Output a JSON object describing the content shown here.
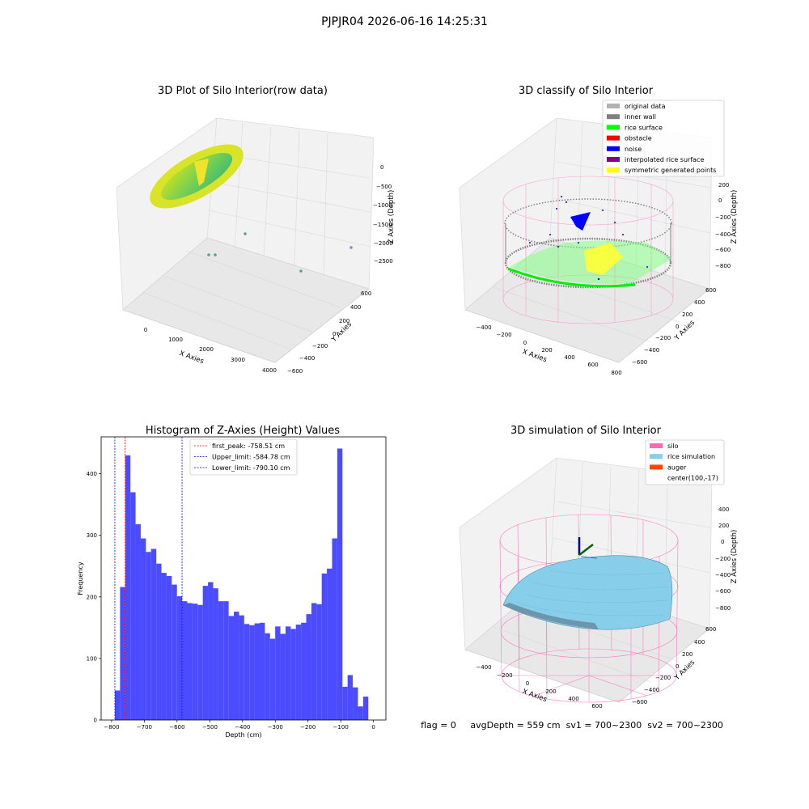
{
  "suptitle": "PJPJR04 2026-06-16 14:25:31",
  "footer_text": "flag = 0     avgDepth = 559 cm  sv1 = 700~2300  sv2 = 700~2300",
  "chart_data": [
    {
      "type": "scatter",
      "projection": "3d",
      "title": "3D Plot of Silo Interior(row data)",
      "xlabel": "X Axies",
      "ylabel": "Y Axies",
      "zlabel": "Z Axies (Depth)",
      "x_ticks": [
        "0",
        "1000",
        "2000",
        "3000",
        "4000"
      ],
      "y_ticks": [
        "600",
        "400",
        "200",
        "0",
        "−200",
        "−400",
        "−600"
      ],
      "z_ticks": [
        "0",
        "−500",
        "−1000",
        "−1500",
        "−2000",
        "−2500"
      ],
      "xlim": [
        -400,
        4200
      ],
      "ylim": [
        -650,
        650
      ],
      "zlim": [
        -2800,
        0
      ],
      "colormap": "viridis",
      "outlier_points": [
        {
          "x": 1400,
          "y": 300,
          "z": -2100
        },
        {
          "x": 1500,
          "y": 300,
          "z": -2100
        },
        {
          "x": 2000,
          "y": 150,
          "z": -1700
        },
        {
          "x": 3500,
          "y": -100,
          "z": -2300
        },
        {
          "x": 4000,
          "y": -450,
          "z": -2000
        }
      ],
      "grid": true
    },
    {
      "type": "scatter",
      "projection": "3d",
      "title": "3D classify of Silo Interior",
      "xlabel": "X Axies",
      "ylabel": "Y Axies",
      "zlabel": "Z Axies (Depth)",
      "x_ticks": [
        "−400",
        "−200",
        "0",
        "200",
        "400",
        "600",
        "800"
      ],
      "y_ticks": [
        "600",
        "400",
        "200",
        "0",
        "−200",
        "−400",
        "−600"
      ],
      "z_ticks": [
        "200",
        "0",
        "−200",
        "−400",
        "−600",
        "−800"
      ],
      "legend_position": "top-right",
      "legend": [
        {
          "label": "original data",
          "color": "#b3b3b3"
        },
        {
          "label": "inner wall",
          "color": "#808080"
        },
        {
          "label": "rice surface",
          "color": "#00ff00"
        },
        {
          "label": "obstacle",
          "color": "#ff0000"
        },
        {
          "label": "noise",
          "color": "#0000ff"
        },
        {
          "label": "interpolated rice surface",
          "color": "#800080"
        },
        {
          "label": "symmetric generated points",
          "color": "#ffff00"
        }
      ],
      "grid": true
    },
    {
      "type": "bar",
      "title": "Histogram of Z-Axies (Height) Values",
      "xlabel": "Depth (cm)",
      "ylabel": "Frequency",
      "bar_color": "#4b4bff",
      "bin_start": -790,
      "bin_width": 15.8,
      "values": [
        48,
        216,
        430,
        370,
        318,
        295,
        273,
        278,
        254,
        239,
        234,
        220,
        201,
        193,
        190,
        189,
        187,
        218,
        224,
        214,
        193,
        193,
        169,
        176,
        170,
        156,
        154,
        157,
        158,
        141,
        132,
        152,
        140,
        152,
        148,
        155,
        158,
        172,
        190,
        188,
        238,
        246,
        295,
        441,
        54,
        73,
        53,
        22,
        38
      ],
      "xlim": [
        -832,
        38
      ],
      "ylim": [
        0,
        460
      ],
      "x_ticks": [
        "−800",
        "−700",
        "−600",
        "−500",
        "−400",
        "−300",
        "−200",
        "−100",
        "0"
      ],
      "y_ticks": [
        "0",
        "100",
        "200",
        "300",
        "400"
      ],
      "vlines": [
        {
          "label": "first_peak: -758.51 cm",
          "value": -758.51,
          "color": "#ff0000"
        },
        {
          "label": "Upper_limit: -584.78 cm",
          "value": -584.78,
          "color": "#0000ff"
        },
        {
          "label": "Lower_limit: -790.10 cm",
          "value": -790.1,
          "color": "#0000ff"
        }
      ],
      "legend_position": "top-center",
      "grid": false
    },
    {
      "type": "surface",
      "projection": "3d",
      "title": "3D simulation of Silo Interior",
      "xlabel": "X Axies",
      "ylabel": "Y Axies",
      "zlabel": "Z Axies (Depth)",
      "x_ticks": [
        "−400",
        "−200",
        "0",
        "200",
        "400",
        "600"
      ],
      "y_ticks": [
        "600",
        "400",
        "200",
        "0",
        "−200",
        "−400",
        "−600"
      ],
      "z_ticks": [
        "400",
        "200",
        "0",
        "−200",
        "−400",
        "−600",
        "−800"
      ],
      "legend_position": "top-right",
      "legend": [
        {
          "label": "silo",
          "color": "#ff69b4"
        },
        {
          "label": "rice simulation",
          "color": "#87ceeb"
        },
        {
          "label": "auger",
          "color": "#ff4500"
        },
        {
          "label": "center(100,-17)",
          "color": ""
        }
      ],
      "grid": true
    }
  ]
}
